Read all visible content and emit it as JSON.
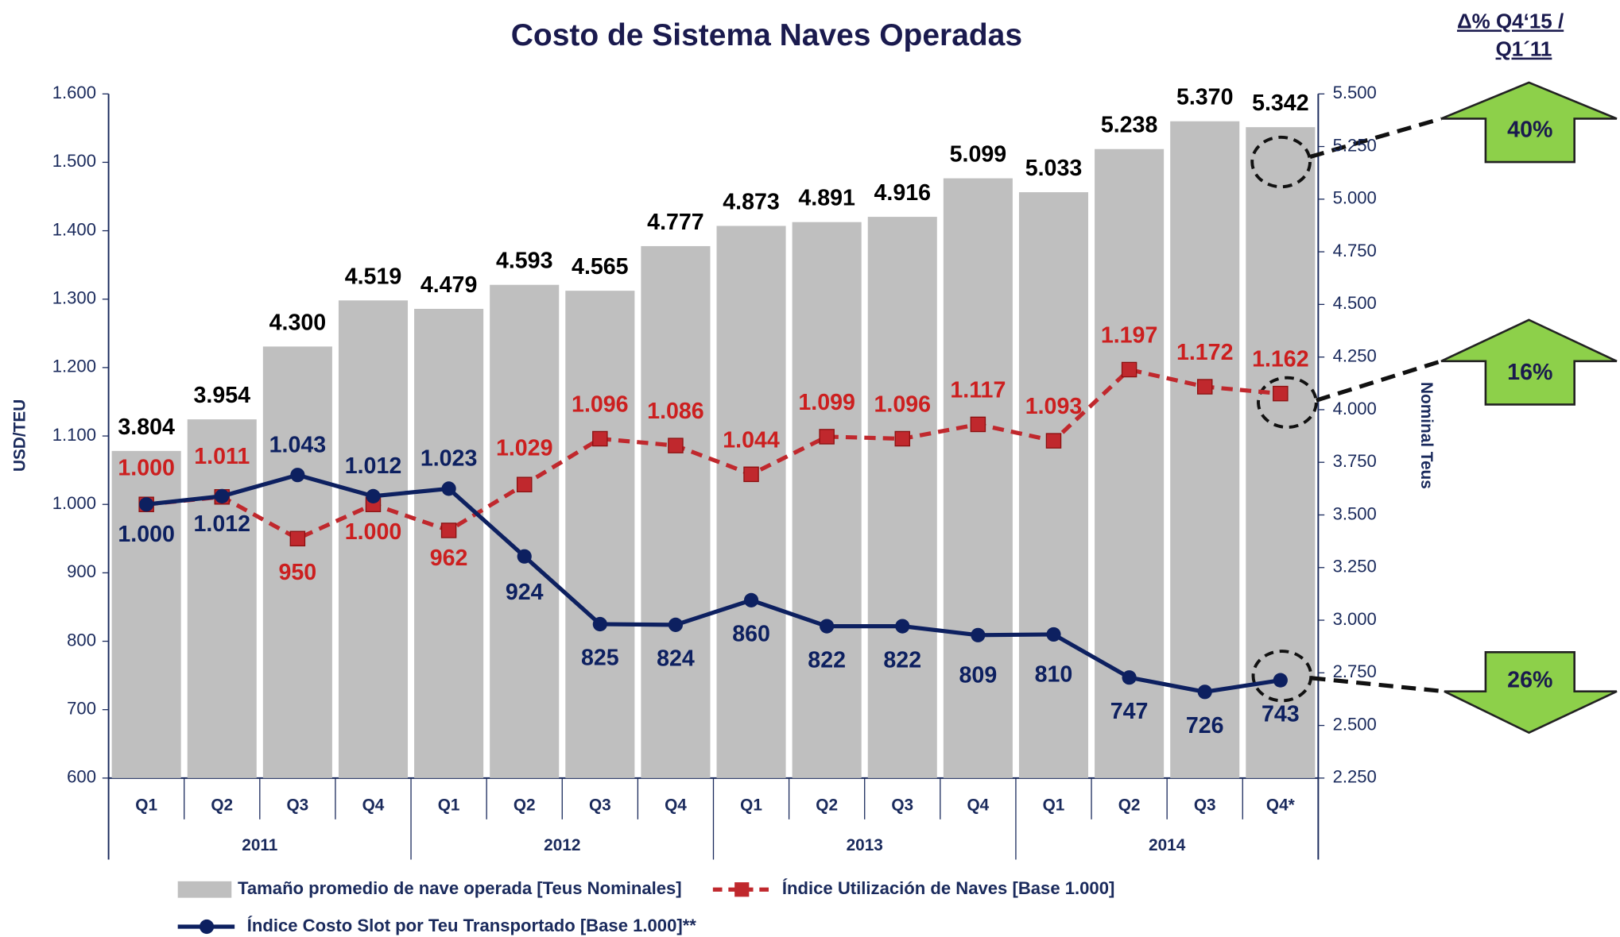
{
  "chart_data": {
    "type": "bar",
    "title": "Costo de Sistema Naves Operadas",
    "y_label": "USD/TEU",
    "y2_label": "Nominal Teus",
    "change_header": [
      "Δ% Q4‘15 /",
      "Q1´11"
    ],
    "annotations": [
      "40%",
      "16%",
      "26%"
    ],
    "categories": [
      "Q1",
      "Q2",
      "Q3",
      "Q4",
      "Q1",
      "Q2",
      "Q3",
      "Q4",
      "Q1",
      "Q2",
      "Q3",
      "Q4",
      "Q1",
      "Q2",
      "Q3",
      "Q4*"
    ],
    "years": [
      "2011",
      "2012",
      "2013",
      "2014"
    ],
    "ylim": [
      600,
      1600
    ],
    "yticks": [
      600,
      700,
      800,
      900,
      {
        "value": 1000,
        "label": "1.000"
      },
      {
        "value": 1100,
        "label": "1.100"
      },
      {
        "value": 1200,
        "label": "1.200"
      },
      {
        "value": 1300,
        "label": "1.300"
      },
      {
        "value": 1400,
        "label": "1.400"
      },
      {
        "value": 1500,
        "label": "1.500"
      },
      {
        "value": 1600,
        "label": "1.600"
      }
    ],
    "y2lim": [
      2250,
      5500
    ],
    "y2ticks": [
      {
        "value": 2250,
        "label": "2.250"
      },
      {
        "value": 2500,
        "label": "2.500"
      },
      {
        "value": 2750,
        "label": "2.750"
      },
      {
        "value": 3000,
        "label": "3.000"
      },
      {
        "value": 3250,
        "label": "3.250"
      },
      {
        "value": 3500,
        "label": "3.500"
      },
      {
        "value": 3750,
        "label": "3.750"
      },
      {
        "value": 4000,
        "label": "4.000"
      },
      {
        "value": 4250,
        "label": "4.250"
      },
      {
        "value": 4500,
        "label": "4.500"
      },
      {
        "value": 4750,
        "label": "4.750"
      },
      {
        "value": 5000,
        "label": "5.000"
      },
      {
        "value": 5250,
        "label": "5.250"
      },
      {
        "value": 5500,
        "label": "5.500"
      }
    ],
    "series": [
      {
        "name": "Tamaño promedio de nave operada [Teus Nominales]",
        "type": "bar",
        "axis": "y2",
        "color": "#bfbfbf",
        "values": [
          3804,
          3954,
          4300,
          4519,
          4479,
          4593,
          4565,
          4777,
          4873,
          4891,
          4916,
          5099,
          5033,
          5238,
          5370,
          5342
        ],
        "value_labels": [
          "3.804",
          "3.954",
          "4.300",
          "4.519",
          "4.479",
          "4.593",
          "4.565",
          "4.777",
          "4.873",
          "4.891",
          "4.916",
          "5.099",
          "5.033",
          "5.238",
          "5.370",
          "5.342"
        ]
      },
      {
        "name": "Índice Utilización de Naves [Base 1.000]",
        "type": "line",
        "dashed": true,
        "marker": "square",
        "color": "#c0282d",
        "values": [
          1000,
          1011,
          950,
          1000,
          962,
          1029,
          1096,
          1086,
          1044,
          1099,
          1096,
          1117,
          1093,
          1197,
          1172,
          1162
        ],
        "value_labels": [
          "1.000",
          "1.011",
          "950",
          "1.000",
          "962",
          "1.029",
          "1.096",
          "1.086",
          "1.044",
          "1.099",
          "1.096",
          "1.117",
          "1.093",
          "1.197",
          "1.172",
          "1.162"
        ]
      },
      {
        "name": "Índice Costo Slot por Teu Transportado [Base 1.000]**",
        "type": "line",
        "dashed": false,
        "marker": "circle",
        "color": "#0d2060",
        "values": [
          1000,
          1012,
          1043,
          1012,
          1023,
          924,
          825,
          824,
          860,
          822,
          822,
          809,
          810,
          747,
          726,
          743
        ],
        "value_labels": [
          "1.000",
          "1.012",
          "1.043",
          "1.012",
          "1.023",
          "924",
          "825",
          "824",
          "860",
          "822",
          "822",
          "809",
          "810",
          "747",
          "726",
          "743"
        ]
      }
    ]
  }
}
